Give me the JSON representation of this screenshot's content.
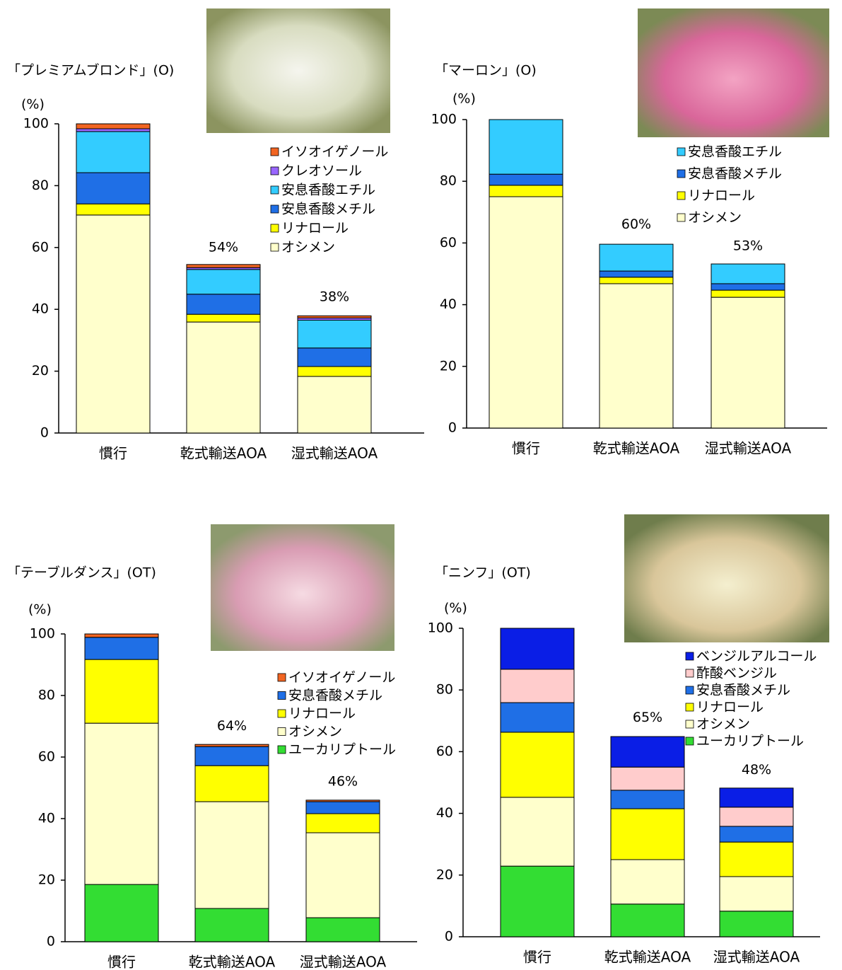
{
  "chart_data": [
    {
      "type": "bar",
      "stacked": true,
      "title": "「プレミアムブロンド」(O)",
      "y_label": "(%)",
      "categories": [
        "慣行",
        "乾式輸送AOA",
        "湿式輸送AOA"
      ],
      "series": [
        {
          "name": "オシメン",
          "color": "#ffffcc",
          "values": [
            70.5,
            35.9,
            18.3
          ]
        },
        {
          "name": "リナロール",
          "color": "#ffff00",
          "values": [
            3.6,
            2.5,
            3.2
          ]
        },
        {
          "name": "安息香酸メチル",
          "color": "#1f6fe6",
          "values": [
            10.1,
            6.5,
            6
          ]
        },
        {
          "name": "安息香酸エチル",
          "color": "#33ccff",
          "values": [
            13.3,
            8,
            9
          ]
        },
        {
          "name": "クレオソール",
          "color": "#9966ff",
          "values": [
            0.9,
            0.6,
            0.7
          ]
        },
        {
          "name": "イソオイゲノール",
          "color": "#f26522",
          "values": [
            1.6,
            1,
            0.7
          ]
        }
      ],
      "totals": [
        null,
        54,
        38
      ],
      "total_labels": [
        null,
        "54%",
        "38%"
      ],
      "ylim": [
        0,
        100
      ],
      "yticks": [
        0,
        20,
        40,
        60,
        80,
        100
      ]
    },
    {
      "type": "bar",
      "stacked": true,
      "title": "「マーロン」(O)",
      "y_label": "(%)",
      "categories": [
        "慣行",
        "乾式輸送AOA",
        "湿式輸送AOA"
      ],
      "series": [
        {
          "name": "オシメン",
          "color": "#ffffcc",
          "values": [
            75,
            46.8,
            42.4
          ]
        },
        {
          "name": "リナロール",
          "color": "#ffff00",
          "values": [
            3.7,
            2.1,
            2.3
          ]
        },
        {
          "name": "安息香酸メチル",
          "color": "#1f6fe6",
          "values": [
            3.6,
            2,
            2.1
          ]
        },
        {
          "name": "安息香酸エチル",
          "color": "#33ccff",
          "values": [
            17.7,
            8.7,
            6.4
          ]
        }
      ],
      "totals": [
        null,
        60,
        53
      ],
      "total_labels": [
        null,
        "60%",
        "53%"
      ],
      "ylim": [
        0,
        100
      ],
      "yticks": [
        0,
        20,
        40,
        60,
        80,
        100
      ]
    },
    {
      "type": "bar",
      "stacked": true,
      "title": "「テーブルダンス」(OT)",
      "y_label": "(%)",
      "categories": [
        "慣行",
        "乾式輸送AOA",
        "湿式輸送AOA"
      ],
      "series": [
        {
          "name": "ユーカリプトール",
          "color": "#33dd33",
          "values": [
            18.6,
            10.8,
            7.8
          ]
        },
        {
          "name": "オシメン",
          "color": "#ffffcc",
          "values": [
            52.4,
            34.7,
            27.6
          ]
        },
        {
          "name": "リナロール",
          "color": "#ffff00",
          "values": [
            20.7,
            11.7,
            6.2
          ]
        },
        {
          "name": "安息香酸メチル",
          "color": "#1f6fe6",
          "values": [
            7.2,
            6.2,
            3.9
          ]
        },
        {
          "name": "イソオイゲノール",
          "color": "#f26522",
          "values": [
            1.1,
            0.7,
            0.5
          ]
        }
      ],
      "totals": [
        null,
        64,
        46
      ],
      "total_labels": [
        null,
        "64%",
        "46%"
      ],
      "ylim": [
        0,
        100
      ],
      "yticks": [
        0,
        20,
        40,
        60,
        80,
        100
      ]
    },
    {
      "type": "bar",
      "stacked": true,
      "title": "「ニンフ」(OT)",
      "y_label": "(%)",
      "categories": [
        "慣行",
        "乾式輸送AOA",
        "湿式輸送AOA"
      ],
      "series": [
        {
          "name": "ユーカリプトール",
          "color": "#33dd33",
          "values": [
            22.9,
            10.6,
            8.3
          ]
        },
        {
          "name": "オシメン",
          "color": "#ffffcc",
          "values": [
            22.3,
            14.4,
            11.2
          ]
        },
        {
          "name": "リナロール",
          "color": "#ffff00",
          "values": [
            21.1,
            16.5,
            11.2
          ]
        },
        {
          "name": "安息香酸メチル",
          "color": "#1f6fe6",
          "values": [
            9.6,
            6,
            5.1
          ]
        },
        {
          "name": "酢酸ベンジル",
          "color": "#ffcccc",
          "values": [
            10.8,
            7.5,
            6.2
          ]
        },
        {
          "name": "ベンジルアルコール",
          "color": "#0a1ee6",
          "values": [
            13.3,
            9.9,
            6.2
          ]
        }
      ],
      "totals": [
        null,
        65,
        48
      ],
      "total_labels": [
        null,
        "65%",
        "48%"
      ],
      "ylim": [
        0,
        100
      ],
      "yticks": [
        0,
        20,
        40,
        60,
        80,
        100
      ]
    }
  ]
}
